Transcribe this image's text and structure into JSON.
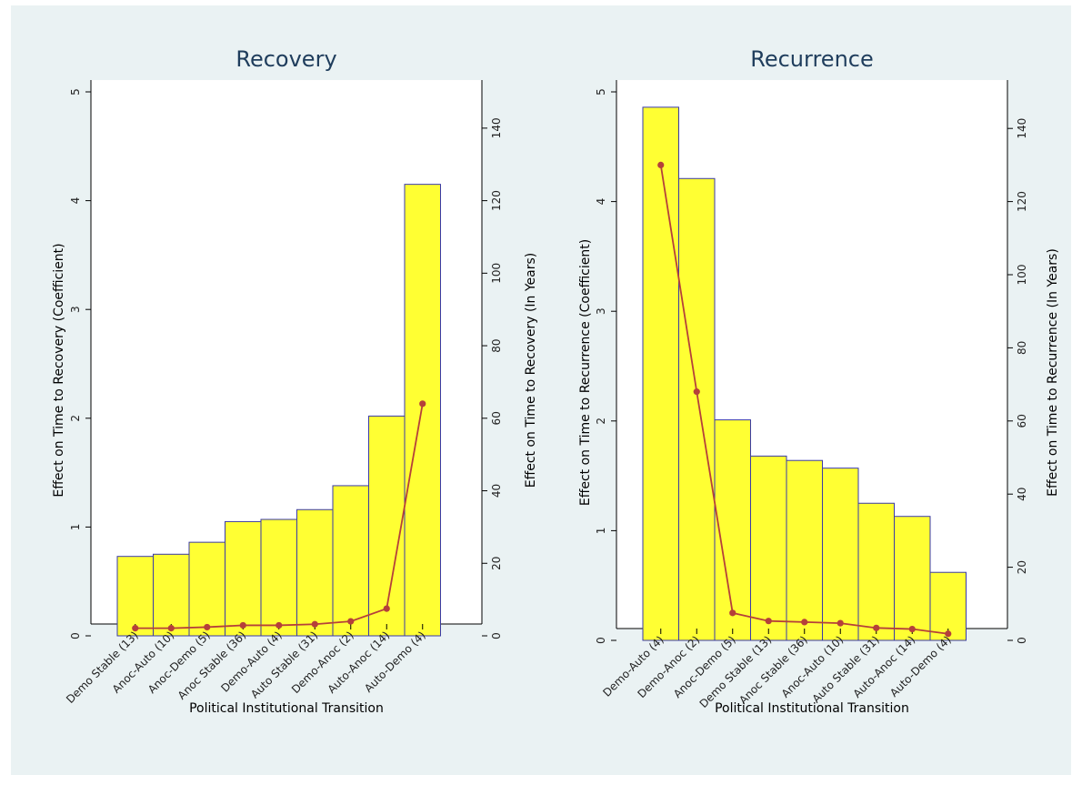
{
  "colors": {
    "background": "#eaf2f3",
    "bar_fill": "#ffff33",
    "bar_outline": "#3a3aa8",
    "line": "#b5403a"
  },
  "chart_data": [
    {
      "type": "bar",
      "title": "Recovery",
      "xlabel": "Political Institutional Transition",
      "ylabel": "Effect on Time to Recovery (Coefficient)",
      "y2label": "Effect on Time to Recovery (In Years)",
      "ylim": [
        0,
        5
      ],
      "y2lim": [
        0,
        150
      ],
      "yticks": [
        0,
        1,
        2,
        3,
        4,
        5
      ],
      "y2ticks": [
        0,
        20,
        40,
        60,
        80,
        100,
        120,
        140
      ],
      "categories": [
        "Demo Stable (13)",
        "Anoc-Auto (10)",
        "Anoc-Demo (5)",
        "Anoc Stable (36)",
        "Demo-Auto (4)",
        "Auto Stable (31)",
        "Demo-Anoc (2)",
        "Auto-Anoc (14)",
        "Auto-Demo (4)"
      ],
      "series": [
        {
          "type": "bar",
          "axis": "left",
          "values": [
            0.73,
            0.75,
            0.86,
            1.05,
            1.07,
            1.16,
            1.38,
            2.02,
            4.15
          ]
        },
        {
          "type": "line",
          "axis": "right",
          "values": [
            2.1,
            2.1,
            2.4,
            2.9,
            2.9,
            3.2,
            4.0,
            7.5,
            64.0
          ]
        }
      ]
    },
    {
      "type": "bar",
      "title": "Recurrence",
      "xlabel": "Political Institutional Transition",
      "ylabel": "Effect on Time to Recurrence (Coefficient)",
      "y2label": "Effect on Time to Recurrence (In Years)",
      "ylim": [
        0,
        5
      ],
      "y2lim": [
        0,
        150
      ],
      "yticks": [
        0,
        1,
        2,
        3,
        4,
        5
      ],
      "y2ticks": [
        0,
        20,
        40,
        60,
        80,
        100,
        120,
        140
      ],
      "categories": [
        "Demo-Auto (4)",
        "Demo-Anoc (2)",
        "Anoc-Demo (5)",
        "Demo Stable (13)",
        "Anoc Stable (36)",
        "Anoc-Auto (10)",
        "Auto Stable (31)",
        "Auto-Anoc (14)",
        "Auto-Demo (4)"
      ],
      "series": [
        {
          "type": "bar",
          "axis": "left",
          "values": [
            4.86,
            4.21,
            2.01,
            1.68,
            1.64,
            1.57,
            1.25,
            1.13,
            0.62
          ]
        },
        {
          "type": "line",
          "axis": "right",
          "values": [
            130,
            68,
            7.5,
            5.3,
            5.0,
            4.7,
            3.4,
            3.1,
            1.8
          ]
        }
      ]
    }
  ]
}
